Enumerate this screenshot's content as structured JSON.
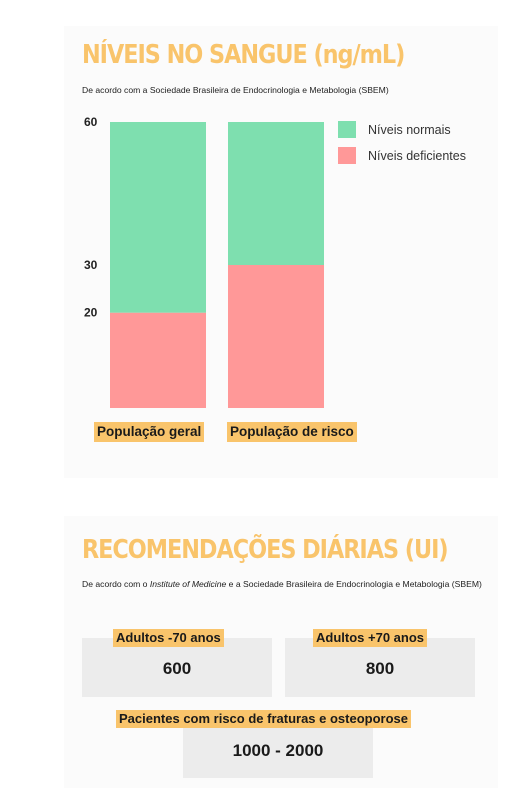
{
  "colors": {
    "accent_title": "#f9c46b",
    "normal": "#7edfaf",
    "deficient": "#ff9898",
    "label_bg": "#f9c46b",
    "box_bg": "#ececec"
  },
  "section1": {
    "title": "NÍVEIS NO SANGUE (ng/mL)",
    "subtitle": "De acordo com a Sociedade Brasileira de Endocrinologia e Metabologia (SBEM)"
  },
  "chart_data": {
    "type": "bar",
    "stacked": true,
    "categories": [
      "População geral",
      "População de risco"
    ],
    "series": [
      {
        "name": "Níveis deficientes",
        "values": [
          20,
          30
        ],
        "color": "#ff9898"
      },
      {
        "name": "Níveis normais",
        "values": [
          40,
          30
        ],
        "color": "#7edfaf"
      }
    ],
    "yticks": [
      20,
      30,
      60
    ],
    "ylim": [
      0,
      60
    ],
    "legend_position": "top-right",
    "legend_order": [
      "Níveis normais",
      "Níveis deficientes"
    ],
    "grid": false
  },
  "section2": {
    "title": "RECOMENDAÇÕES DIÁRIAS (UI)",
    "subtitle_pre": "De acordo com o ",
    "subtitle_em": "Institute of Medicine",
    "subtitle_post": " e a Sociedade Brasileira de Endocrinologia e Metabologia (SBEM)",
    "items": [
      {
        "label": "Adultos -70 anos",
        "value": "600"
      },
      {
        "label": "Adultos +70 anos",
        "value": "800"
      },
      {
        "label": "Pacientes com risco de fraturas e osteoporose",
        "value": "1000 - 2000"
      }
    ]
  }
}
